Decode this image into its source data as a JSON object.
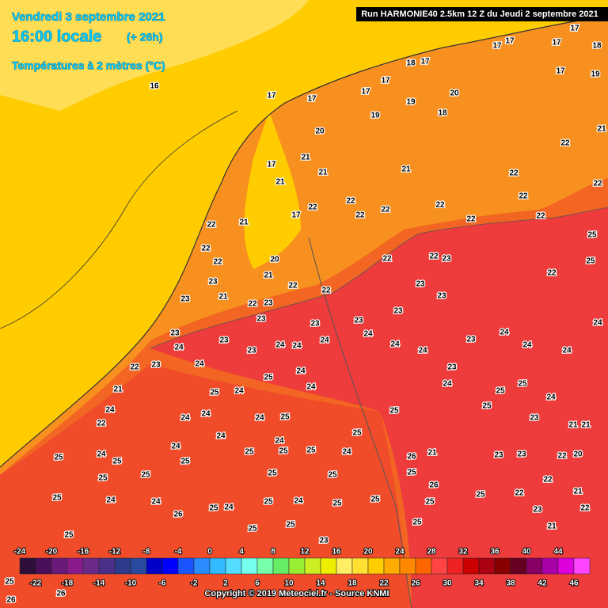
{
  "header": {
    "date": "Vendredi 3 septembre 2021",
    "time": "16:00 locale",
    "offset": "(+ 26h)",
    "variable": "Températures à 2 mètres (°C)"
  },
  "run": "Run HARMONIE40 2.5km 12 Z du Jeudi 2 septembre 2021",
  "legend": {
    "colors": [
      "#2d0f3a",
      "#4a0f5a",
      "#6a1a7a",
      "#8a1b8c",
      "#6b2a8a",
      "#4b2f8a",
      "#2e3a8a",
      "#2a4aa0",
      "#0000c8",
      "#0000ff",
      "#1a55ff",
      "#2a8cff",
      "#33bbff",
      "#55ddff",
      "#77ffee",
      "#77ffaa",
      "#66ee66",
      "#99ee33",
      "#ccee22",
      "#eeee00",
      "#ffee66",
      "#ffe033",
      "#ffcc00",
      "#ffaa00",
      "#ff8800",
      "#ff6600",
      "#ff4444",
      "#ee2222",
      "#cc0000",
      "#aa0011",
      "#880000",
      "#660022",
      "#880066",
      "#aa00aa",
      "#dd00dd",
      "#ff44ff"
    ],
    "top_labels": [
      -24,
      -20,
      -16,
      -12,
      -8,
      -4,
      0,
      4,
      8,
      12,
      16,
      20,
      24,
      28,
      32,
      36,
      40,
      44
    ],
    "bottom_labels": [
      -22,
      -18,
      -14,
      -10,
      -6,
      -2,
      2,
      6,
      10,
      14,
      18,
      22,
      26,
      30,
      34,
      38,
      42,
      46
    ]
  },
  "map_labels": [
    16,
    17,
    17,
    17,
    17,
    18,
    17,
    17,
    17,
    17,
    17,
    18,
    19,
    17,
    20,
    19,
    18,
    19,
    20,
    21,
    21,
    21,
    17,
    21,
    22,
    22,
    22,
    22,
    22,
    22,
    22,
    22,
    22,
    22,
    21,
    22,
    22,
    21,
    17,
    22,
    22,
    20,
    21,
    22,
    23,
    23,
    21,
    22,
    23,
    22,
    22,
    22,
    23,
    23,
    23,
    23,
    23,
    23,
    23,
    23,
    25,
    25,
    22,
    24,
    24,
    24,
    24,
    24,
    24,
    24,
    24,
    24,
    24,
    24,
    24,
    23,
    23,
    23,
    25,
    24,
    24,
    22,
    23,
    21,
    24,
    22,
    25,
    24,
    23,
    24,
    25,
    25,
    24,
    25,
    25,
    23,
    21,
    21,
    24,
    24,
    24,
    25,
    24,
    24,
    25,
    25,
    24,
    25,
    24,
    25,
    25,
    25,
    25,
    24,
    26,
    21,
    25,
    23,
    23,
    22,
    20,
    25,
    25,
    25,
    25,
    26,
    25,
    22,
    22,
    21,
    25,
    24,
    24,
    26,
    25,
    24,
    25,
    24,
    25,
    25,
    25,
    25,
    23,
    22,
    21,
    25,
    25,
    25,
    23,
    25,
    26,
    26
  ],
  "copyright": "Copyright © 2019 Meteociel.fr - Source KNMI"
}
